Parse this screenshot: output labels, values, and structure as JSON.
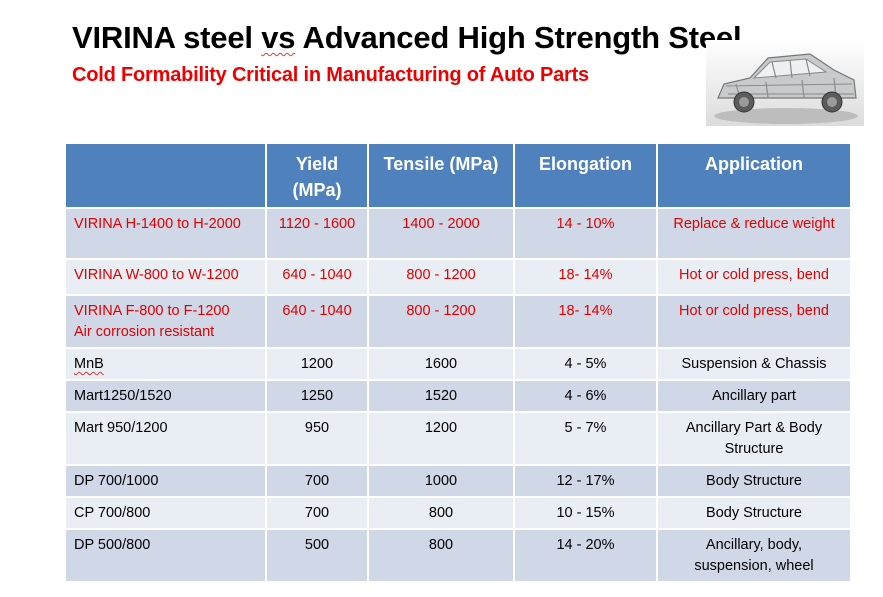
{
  "title": {
    "part1": "VIRINA steel ",
    "vs": "vs",
    "part2": " Advanced High Strength Steel"
  },
  "subtitle": "Cold Formability Critical in Manufacturing of Auto Parts",
  "image": {
    "description_icon": "car-body-frame-icon"
  },
  "table": {
    "headers": [
      "",
      "Yield (MPa)",
      "Tensile (MPa)",
      "Elongation",
      "Application"
    ],
    "rows": [
      {
        "name": "VIRINA H-1400  to H-2000",
        "name2": "",
        "yield": "1120 - 1600",
        "tensile": "1400 - 2000",
        "elongation": "14 - 10%",
        "application": "Replace & reduce weight"
      },
      {
        "name": "VIRINA W-800 to W-1200",
        "name2": "",
        "yield": "640 - 1040",
        "tensile": "800 -  1200",
        "elongation": "18- 14%",
        "application": "Hot or cold press, bend"
      },
      {
        "name": "VIRINA F-800 to F-1200",
        "name2": "Air corrosion resistant",
        "yield": "640 - 1040",
        "tensile": "800 - 1200",
        "elongation": "18- 14%",
        "application": "Hot or cold press, bend"
      },
      {
        "name": "MnB",
        "name2": "",
        "yield": "1200",
        "tensile": "1600",
        "elongation": "4 -  5%",
        "application": "Suspension & Chassis"
      },
      {
        "name": "Mart1250/1520",
        "name2": "",
        "yield": "1250",
        "tensile": "1520",
        "elongation": "4 - 6%",
        "application": "Ancillary part"
      },
      {
        "name": "Mart 950/1200",
        "name2": "",
        "yield": "950",
        "tensile": "1200",
        "elongation": "5 - 7%",
        "application": "Ancillary Part  & Body Structure"
      },
      {
        "name": "DP 700/1000",
        "name2": "",
        "yield": "700",
        "tensile": "1000",
        "elongation": "12 - 17%",
        "application": "Body Structure"
      },
      {
        "name": "CP 700/800",
        "name2": "",
        "yield": "700",
        "tensile": "800",
        "elongation": "10 - 15%",
        "application": "Body Structure"
      },
      {
        "name": "DP 500/800",
        "name2": "",
        "yield": "500",
        "tensile": "800",
        "elongation": "14 - 20%",
        "application": "Ancillary, body, suspension, wheel"
      }
    ]
  },
  "colors": {
    "header_bg": "#4f81bd",
    "row_odd": "#d0d8e8",
    "row_even": "#e9edf4",
    "virina_text": "#e00000",
    "subtitle": "#ee0000"
  }
}
